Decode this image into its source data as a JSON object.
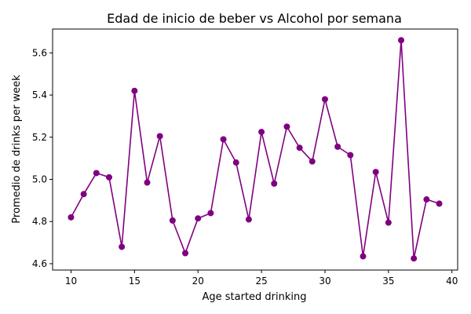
{
  "chart_data": {
    "type": "line",
    "title": "Edad de inicio de beber vs Alcohol por semana",
    "xlabel": "Age started drinking",
    "ylabel": "Promedio de drinks per week",
    "xlim": [
      8.55,
      40.45
    ],
    "ylim": [
      4.57,
      5.713
    ],
    "x_ticks": [
      "10",
      "15",
      "20",
      "25",
      "30",
      "35",
      "40"
    ],
    "y_ticks": [
      "4.6",
      "4.8",
      "5.0",
      "5.2",
      "5.4",
      "5.6"
    ],
    "grid": false,
    "color": "#800080",
    "series": [
      {
        "x": [
          10,
          11,
          12,
          13,
          14,
          15,
          16,
          17,
          18,
          19,
          20,
          21,
          22,
          23,
          24,
          25,
          26,
          27,
          28,
          29,
          30,
          31,
          32,
          33,
          34,
          35,
          36,
          37,
          38,
          39
        ],
        "values": [
          4.82,
          4.93,
          5.03,
          5.01,
          4.68,
          5.42,
          4.985,
          5.205,
          4.805,
          4.65,
          4.815,
          4.84,
          5.19,
          5.08,
          4.81,
          5.225,
          4.98,
          5.25,
          5.15,
          5.085,
          5.38,
          5.155,
          5.115,
          4.635,
          5.035,
          4.795,
          5.66,
          4.625,
          4.905,
          4.885
        ]
      }
    ]
  }
}
